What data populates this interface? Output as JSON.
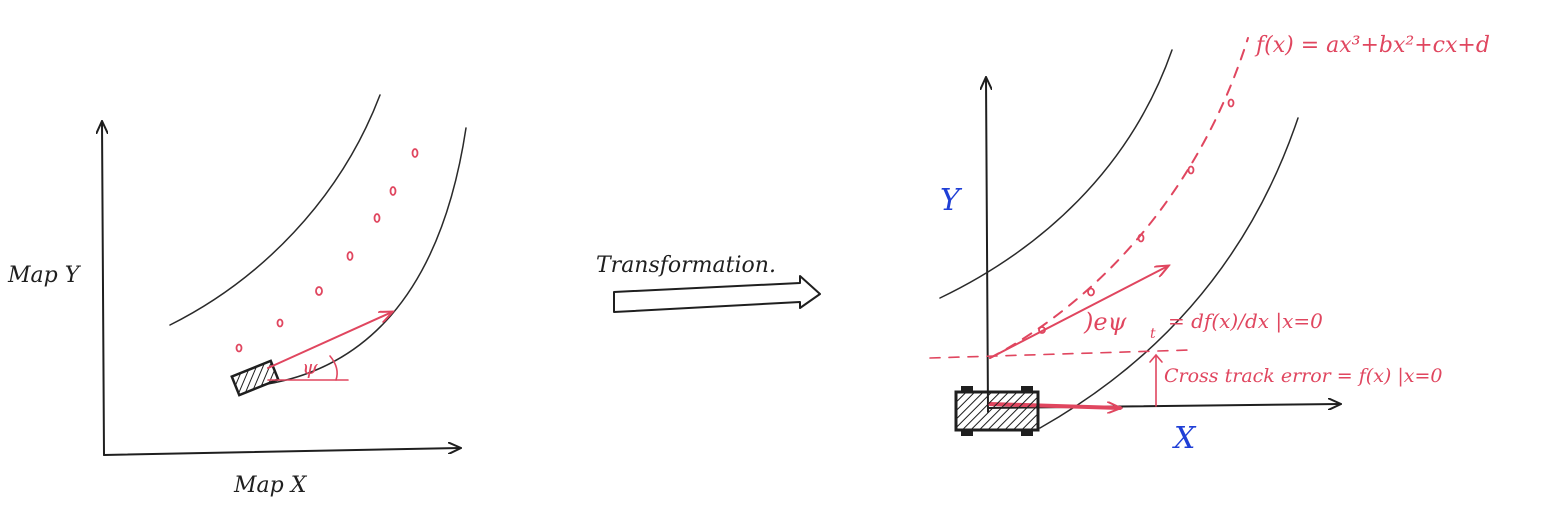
{
  "left_panel": {
    "x_axis_label": "Map X",
    "y_axis_label": "Map Y",
    "angle_label": "ψ"
  },
  "transform": {
    "label": "Transformation."
  },
  "right_panel": {
    "x_axis_label": "X",
    "y_axis_label": "Y",
    "polyfit_label": "f(x) = ax³+bx²+cx+d",
    "epsi_label": ")eψ",
    "epsi_sub": "t",
    "derivative_eq": "= df(x)/dx |x=0",
    "cte_label": "Cross track error = f(x) |x=0"
  },
  "colors": {
    "ink": "#1f1f1f",
    "red": "#e0465f",
    "blue": "#1f3fd6"
  }
}
